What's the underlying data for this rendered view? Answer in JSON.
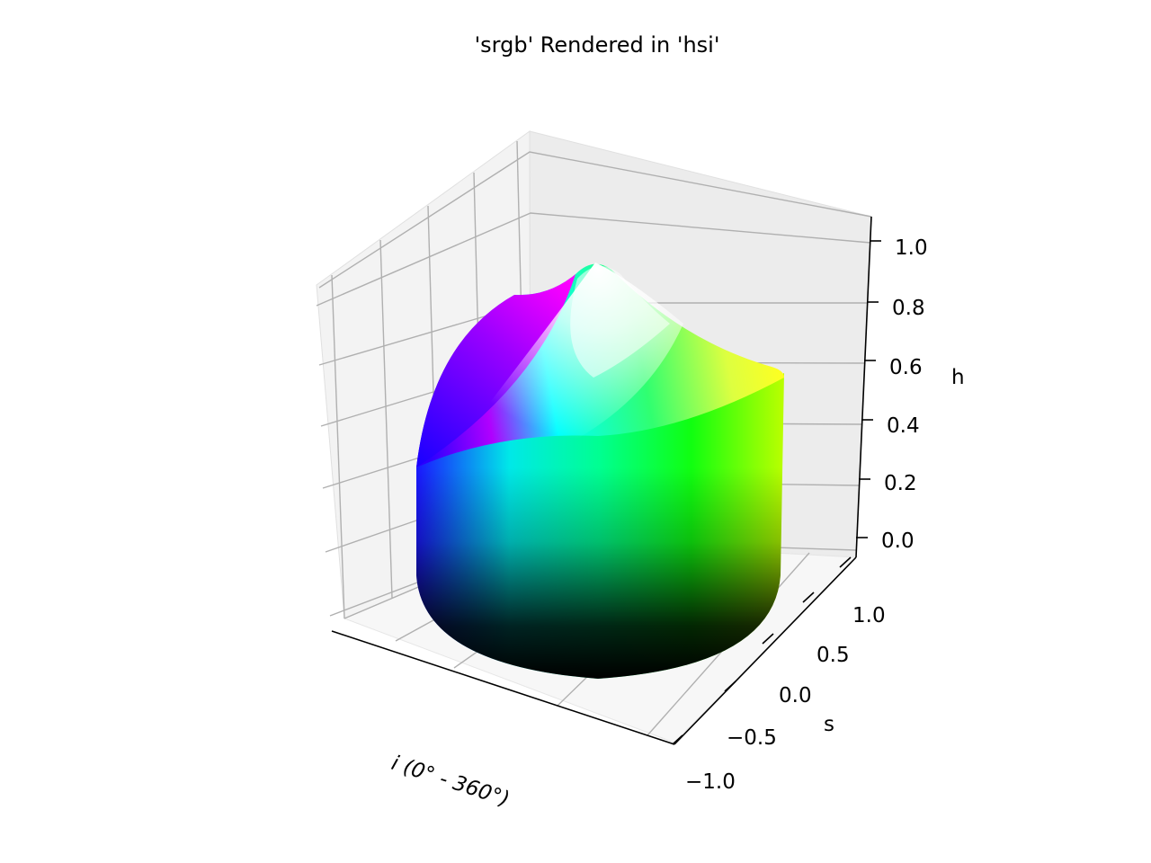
{
  "chart_data": {
    "type": "3d-surface",
    "title": "'srgb' Rendered in 'hsi'",
    "x_axis": {
      "label": "i (0° - 360°)",
      "ticks": []
    },
    "y_axis": {
      "label": "s",
      "ticks": [
        "−1.0",
        "−0.5",
        "0.0",
        "0.5",
        "1.0"
      ],
      "range": [
        -1.0,
        1.0
      ]
    },
    "z_axis": {
      "label": "h",
      "ticks": [
        "0.0",
        "0.2",
        "0.4",
        "0.6",
        "0.8",
        "1.0"
      ],
      "range": [
        0.0,
        1.0
      ]
    },
    "grid": true,
    "colors": {
      "red": "#ff0000",
      "yellow": "#ffff00",
      "green": "#00ff00",
      "cyan": "#00ffff",
      "blue": "#0000ff",
      "magenta": "#ff00ff",
      "white": "#ffffff",
      "black": "#000000"
    }
  }
}
